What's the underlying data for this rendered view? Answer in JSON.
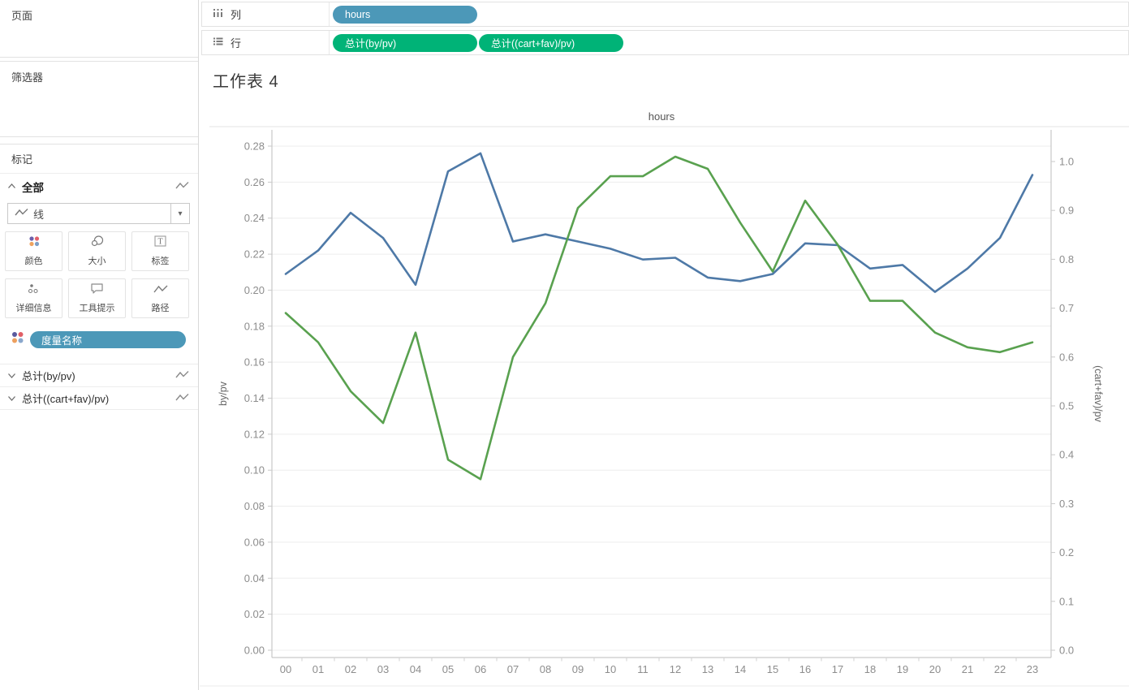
{
  "sidebar": {
    "pages_label": "页面",
    "filters_label": "筛选器",
    "marks": {
      "title": "标记",
      "all_label": "全部",
      "mark_type": "线",
      "buttons": [
        {
          "label": "颜色",
          "icon": "color-icon"
        },
        {
          "label": "大小",
          "icon": "size-icon"
        },
        {
          "label": "标签",
          "icon": "label-icon"
        },
        {
          "label": "详细信息",
          "icon": "detail-icon"
        },
        {
          "label": "工具提示",
          "icon": "tooltip-icon"
        },
        {
          "label": "路径",
          "icon": "path-icon"
        }
      ],
      "measure_pill": "度量名称",
      "fields": [
        "总计(by/pv)",
        "总计((cart+fav)/pv)"
      ]
    }
  },
  "shelves": {
    "columns": {
      "label": "列",
      "pills": [
        {
          "label": "hours",
          "color": "#4c98b8"
        }
      ]
    },
    "rows": {
      "label": "行",
      "pills": [
        {
          "label": "总计(by/pv)",
          "color": "#00b377"
        },
        {
          "label": "总计((cart+fav)/pv)",
          "color": "#00b377"
        }
      ]
    }
  },
  "sheet": {
    "title": "工作表 4"
  },
  "chart_data": {
    "type": "line",
    "title": "hours",
    "grid": true,
    "legend": "none",
    "x_categories": [
      "00",
      "01",
      "02",
      "03",
      "04",
      "05",
      "06",
      "07",
      "08",
      "09",
      "10",
      "11",
      "12",
      "13",
      "14",
      "15",
      "16",
      "17",
      "18",
      "19",
      "20",
      "21",
      "22",
      "23"
    ],
    "series": [
      {
        "name": "总计(by/pv)",
        "axis": "left",
        "color": "#4e79a7",
        "values": [
          0.209,
          0.222,
          0.243,
          0.229,
          0.203,
          0.266,
          0.276,
          0.227,
          0.231,
          0.227,
          0.223,
          0.217,
          0.218,
          0.207,
          0.205,
          0.209,
          0.226,
          0.225,
          0.212,
          0.214,
          0.199,
          0.212,
          0.229,
          0.264
        ]
      },
      {
        "name": "总计((cart+fav)/pv)",
        "axis": "right",
        "color": "#59a14f",
        "values": [
          0.69,
          0.63,
          0.53,
          0.465,
          0.65,
          0.39,
          0.35,
          0.6,
          0.71,
          0.905,
          0.97,
          0.97,
          1.01,
          0.985,
          0.875,
          0.775,
          0.92,
          0.83,
          0.715,
          0.715,
          0.65,
          0.62,
          0.61,
          0.63
        ]
      }
    ],
    "left_axis": {
      "title": "by/pv",
      "min": 0,
      "max": 0.28,
      "tick_step": 0.02,
      "tick_labels": [
        "0.00",
        "0.02",
        "0.04",
        "0.06",
        "0.08",
        "0.10",
        "0.12",
        "0.14",
        "0.16",
        "0.18",
        "0.20",
        "0.22",
        "0.24",
        "0.26",
        "0.28"
      ]
    },
    "right_axis": {
      "title": "(cart+fav)/pv",
      "min": 0,
      "max": 1.0,
      "tick_step": 0.1,
      "tick_labels": [
        "0.0",
        "0.1",
        "0.2",
        "0.3",
        "0.4",
        "0.5",
        "0.6",
        "0.7",
        "0.8",
        "0.9",
        "1.0"
      ]
    }
  }
}
